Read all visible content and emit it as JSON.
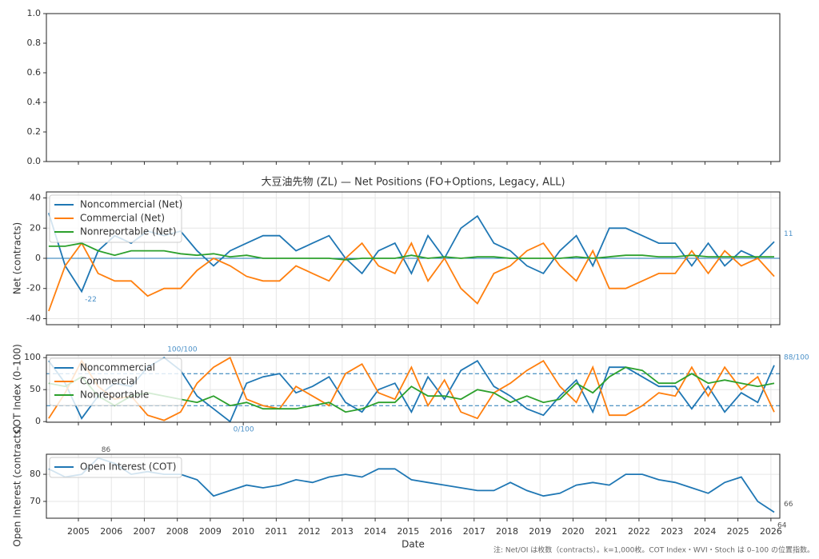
{
  "chart_data": [
    {
      "type": "line",
      "xlim": [
        2004.03,
        2026.27
      ],
      "ylim": [
        0,
        1
      ],
      "yticks": [
        {
          "value": 0,
          "label": "0.0"
        },
        0.2,
        0.4,
        0.6,
        0.8,
        {
          "value": 1,
          "label": "1.0"
        }
      ],
      "grid": false,
      "series": []
    },
    {
      "type": "line",
      "title": "大豆油先物 (ZL) — Net Positions (FO+Options, Legacy, ALL)",
      "y_label": "Net (contracts)",
      "xlim": [
        2004.03,
        2026.27
      ],
      "ylim": [
        -44,
        44
      ],
      "yticks": [
        -40,
        -20,
        0,
        20,
        40
      ],
      "grid": true,
      "legend": "upper left",
      "reference_lines": [
        0
      ],
      "reference_style": "solid",
      "annotation_color": "#4a90c8",
      "annotations": {
        "last": "11",
        "min": "-22"
      },
      "x": [
        2004.1,
        2004.6,
        2005.1,
        2005.6,
        2006.1,
        2006.6,
        2007.1,
        2007.6,
        2008.1,
        2008.6,
        2009.1,
        2009.6,
        2010.1,
        2010.6,
        2011.1,
        2011.6,
        2012.1,
        2012.6,
        2013.1,
        2013.6,
        2014.1,
        2014.6,
        2015.1,
        2015.6,
        2016.1,
        2016.6,
        2017.1,
        2017.6,
        2018.1,
        2018.6,
        2019.1,
        2019.6,
        2020.1,
        2020.6,
        2021.1,
        2021.6,
        2022.1,
        2022.6,
        2023.1,
        2023.6,
        2024.1,
        2024.6,
        2025.1,
        2025.6,
        2026.1
      ],
      "series": [
        {
          "name": "Noncommercial (Net)",
          "color": "#1f77b4",
          "values": [
            30,
            -5,
            -22,
            5,
            15,
            10,
            18,
            15,
            18,
            5,
            -5,
            5,
            10,
            15,
            15,
            5,
            10,
            15,
            0,
            -10,
            5,
            10,
            -10,
            15,
            0,
            20,
            28,
            10,
            5,
            -5,
            -10,
            5,
            15,
            -5,
            20,
            20,
            15,
            10,
            10,
            -5,
            10,
            -5,
            5,
            0,
            11
          ]
        },
        {
          "name": "Commercial (Net)",
          "color": "#ff7f0e",
          "values": [
            -35,
            -5,
            10,
            -10,
            -15,
            -15,
            -25,
            -20,
            -20,
            -8,
            0,
            -5,
            -12,
            -15,
            -15,
            -5,
            -10,
            -15,
            0,
            10,
            -5,
            -10,
            10,
            -15,
            0,
            -20,
            -30,
            -10,
            -5,
            5,
            10,
            -5,
            -15,
            5,
            -20,
            -20,
            -15,
            -10,
            -10,
            5,
            -10,
            5,
            -5,
            0,
            -12
          ]
        },
        {
          "name": "Nonreportable (Net)",
          "color": "#2ca02c",
          "values": [
            8,
            8,
            10,
            5,
            2,
            5,
            5,
            5,
            3,
            2,
            3,
            1,
            2,
            0,
            0,
            0,
            0,
            0,
            -1,
            0,
            0,
            0,
            2,
            0,
            1,
            0,
            1,
            1,
            0,
            0,
            0,
            0,
            1,
            0,
            1,
            2,
            2,
            1,
            1,
            2,
            1,
            1,
            1,
            1,
            1
          ]
        }
      ]
    },
    {
      "type": "line",
      "y_label": "COT Index (0–100)",
      "xlim": [
        2004.03,
        2026.27
      ],
      "ylim": [
        -1,
        104
      ],
      "yticks": [
        0,
        50,
        100
      ],
      "grid": true,
      "legend": "upper left",
      "reference_lines": [
        25,
        75
      ],
      "reference_style": "dashed",
      "annotation_color": "#4a90c8",
      "annotations": {
        "max": "100/100",
        "min": "0/100",
        "last": "88/100"
      },
      "x": [
        2004.1,
        2004.6,
        2005.1,
        2005.6,
        2006.1,
        2006.6,
        2007.1,
        2007.6,
        2008.1,
        2008.6,
        2009.1,
        2009.6,
        2010.1,
        2010.6,
        2011.1,
        2011.6,
        2012.1,
        2012.6,
        2013.1,
        2013.6,
        2014.1,
        2014.6,
        2015.1,
        2015.6,
        2016.1,
        2016.6,
        2017.1,
        2017.6,
        2018.1,
        2018.6,
        2019.1,
        2019.6,
        2020.1,
        2020.6,
        2021.1,
        2021.6,
        2022.1,
        2022.6,
        2023.1,
        2023.6,
        2024.1,
        2024.6,
        2025.1,
        2025.6,
        2026.1
      ],
      "series": [
        {
          "name": "Noncommercial",
          "color": "#1f77b4",
          "values": [
            95,
            60,
            5,
            40,
            60,
            55,
            85,
            100,
            80,
            40,
            20,
            0,
            60,
            70,
            75,
            45,
            55,
            70,
            30,
            15,
            50,
            60,
            15,
            70,
            35,
            80,
            95,
            55,
            40,
            20,
            10,
            40,
            65,
            15,
            85,
            85,
            70,
            55,
            55,
            20,
            55,
            15,
            45,
            30,
            88
          ]
        },
        {
          "name": "Commercial",
          "color": "#ff7f0e",
          "values": [
            5,
            45,
            95,
            55,
            35,
            40,
            10,
            2,
            15,
            60,
            85,
            100,
            35,
            25,
            20,
            55,
            40,
            25,
            75,
            90,
            45,
            35,
            85,
            25,
            65,
            15,
            5,
            45,
            60,
            80,
            95,
            55,
            30,
            85,
            10,
            10,
            25,
            45,
            40,
            85,
            40,
            85,
            50,
            70,
            15
          ]
        },
        {
          "name": "Nonreportable",
          "color": "#2ca02c",
          "values": [
            60,
            55,
            70,
            40,
            25,
            40,
            45,
            40,
            35,
            30,
            40,
            25,
            30,
            20,
            20,
            20,
            25,
            30,
            15,
            20,
            30,
            30,
            55,
            40,
            40,
            35,
            50,
            45,
            30,
            40,
            30,
            35,
            60,
            45,
            70,
            85,
            80,
            60,
            60,
            75,
            60,
            65,
            60,
            55,
            60
          ]
        }
      ]
    },
    {
      "type": "line",
      "y_label": "Open Interest (contracts)",
      "x_label": "Date",
      "xlim": [
        2004.03,
        2026.27
      ],
      "ylim": [
        63.8,
        87.4
      ],
      "yticks": [
        70,
        80
      ],
      "xticks": [
        2005,
        2006,
        2007,
        2008,
        2009,
        2010,
        2011,
        2012,
        2013,
        2014,
        2015,
        2016,
        2017,
        2018,
        2019,
        2020,
        2021,
        2022,
        2023,
        2024,
        2025,
        2026
      ],
      "grid": true,
      "legend": "upper left",
      "annotation_color": "#555555",
      "annotations": {
        "max": "86",
        "last": "66",
        "low": "64"
      },
      "x": [
        2004.1,
        2004.6,
        2005.1,
        2005.6,
        2006.1,
        2006.6,
        2007.1,
        2007.6,
        2008.1,
        2008.6,
        2009.1,
        2009.6,
        2010.1,
        2010.6,
        2011.1,
        2011.6,
        2012.1,
        2012.6,
        2013.1,
        2013.6,
        2014.1,
        2014.6,
        2015.1,
        2015.6,
        2016.1,
        2016.6,
        2017.1,
        2017.6,
        2018.1,
        2018.6,
        2019.1,
        2019.6,
        2020.1,
        2020.6,
        2021.1,
        2021.6,
        2022.1,
        2022.6,
        2023.1,
        2023.6,
        2024.1,
        2024.6,
        2025.1,
        2025.6,
        2026.1
      ],
      "series": [
        {
          "name": "Open Interest (COT)",
          "color": "#1f77b4",
          "values": [
            82,
            79,
            80,
            86,
            84,
            80,
            81,
            80,
            80,
            78,
            72,
            74,
            76,
            75,
            76,
            78,
            77,
            79,
            80,
            79,
            82,
            82,
            78,
            77,
            76,
            75,
            74,
            74,
            77,
            74,
            72,
            73,
            76,
            77,
            76,
            80,
            80,
            78,
            77,
            75,
            73,
            77,
            79,
            70,
            66
          ]
        }
      ]
    }
  ],
  "footnote": "注: Net/OI は枚数（contracts）。k=1,000枚。COT Index・WVI・Stoch は 0–100 の位置指数。"
}
